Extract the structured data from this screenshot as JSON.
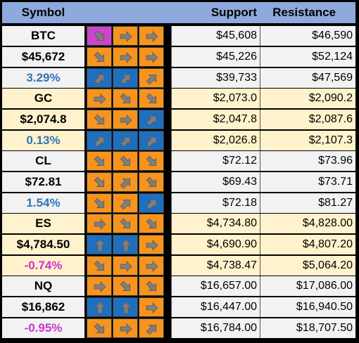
{
  "header": {
    "symbol": "Symbol",
    "support": "Support",
    "resistance": "Resistance",
    "bg": "#8EA9DB"
  },
  "colors": {
    "orange": "#F7941D",
    "blue": "#1F6FBF",
    "magenta": "#CC44CC",
    "light_band": "#F2F2F2",
    "cream_band": "#FFF2CC",
    "pos_text": "#2F75B5",
    "neg_text": "#CC33CC",
    "arrow_gray": "#7F7F7F"
  },
  "groups": [
    {
      "band": "light",
      "rows": [
        {
          "label": "BTC",
          "label_color": "#000000",
          "arrows": [
            [
              "magenta",
              "down-right"
            ],
            [
              "orange",
              "right"
            ],
            [
              "orange",
              "right"
            ]
          ],
          "support": "$45,608",
          "resistance": "$46,590"
        },
        {
          "label": "$45,672",
          "label_color": "#000000",
          "arrows": [
            [
              "orange",
              "down-right"
            ],
            [
              "orange",
              "right"
            ],
            [
              "orange",
              "right"
            ]
          ],
          "support": "$45,226",
          "resistance": "$52,124"
        },
        {
          "label": "3.29%",
          "label_color": "#2F75B5",
          "arrows": [
            [
              "blue",
              "up-right"
            ],
            [
              "blue",
              "up-right"
            ],
            [
              "orange",
              "up-right"
            ]
          ],
          "support": "$39,733",
          "resistance": "$47,569"
        }
      ]
    },
    {
      "band": "cream",
      "rows": [
        {
          "label": "GC",
          "label_color": "#000000",
          "arrows": [
            [
              "orange",
              "right"
            ],
            [
              "orange",
              "down-right"
            ],
            [
              "orange",
              "down-right"
            ]
          ],
          "support": "$2,073.0",
          "resistance": "$2,090.2"
        },
        {
          "label": "$2,074.8",
          "label_color": "#000000",
          "arrows": [
            [
              "orange",
              "down-right"
            ],
            [
              "orange",
              "right"
            ],
            [
              "blue",
              "up-right"
            ]
          ],
          "support": "$2,047.8",
          "resistance": "$2,087.6"
        },
        {
          "label": "0.13%",
          "label_color": "#2F75B5",
          "arrows": [
            [
              "blue",
              "up-right"
            ],
            [
              "blue",
              "up-right"
            ],
            [
              "blue",
              "up-right"
            ]
          ],
          "support": "$2,026.8",
          "resistance": "$2,107.3"
        }
      ]
    },
    {
      "band": "light",
      "rows": [
        {
          "label": "CL",
          "label_color": "#000000",
          "arrows": [
            [
              "orange",
              "down-right"
            ],
            [
              "orange",
              "down-right"
            ],
            [
              "orange",
              "down-right"
            ]
          ],
          "support": "$72.12",
          "resistance": "$73.96"
        },
        {
          "label": "$72.81",
          "label_color": "#000000",
          "arrows": [
            [
              "orange",
              "down-right"
            ],
            [
              "orange",
              "up-right"
            ],
            [
              "orange",
              "down-right"
            ]
          ],
          "support": "$69.43",
          "resistance": "$73.71"
        },
        {
          "label": "1.54%",
          "label_color": "#2F75B5",
          "arrows": [
            [
              "orange",
              "down-right"
            ],
            [
              "orange",
              "up-right"
            ],
            [
              "blue",
              "up-right"
            ]
          ],
          "support": "$72.18",
          "resistance": "$81.27"
        }
      ]
    },
    {
      "band": "cream",
      "rows": [
        {
          "label": "ES",
          "label_color": "#000000",
          "arrows": [
            [
              "orange",
              "right"
            ],
            [
              "orange",
              "down-right"
            ],
            [
              "orange",
              "down-right"
            ]
          ],
          "support": "$4,734.80",
          "resistance": "$4,828.00"
        },
        {
          "label": "$4,784.50",
          "label_color": "#000000",
          "arrows": [
            [
              "blue",
              "up"
            ],
            [
              "blue",
              "up"
            ],
            [
              "orange",
              "right"
            ]
          ],
          "support": "$4,690.90",
          "resistance": "$4,807.20"
        },
        {
          "label": "-0.74%",
          "label_color": "#CC33CC",
          "arrows": [
            [
              "orange",
              "down-right"
            ],
            [
              "orange",
              "right"
            ],
            [
              "orange",
              "right"
            ]
          ],
          "support": "$4,738.47",
          "resistance": "$5,064.20"
        }
      ]
    },
    {
      "band": "light",
      "rows": [
        {
          "label": "NQ",
          "label_color": "#000000",
          "arrows": [
            [
              "orange",
              "right"
            ],
            [
              "orange",
              "down-right"
            ],
            [
              "orange",
              "down-right"
            ]
          ],
          "support": "$16,657.00",
          "resistance": "$17,086.00"
        },
        {
          "label": "$16,862",
          "label_color": "#000000",
          "arrows": [
            [
              "blue",
              "up"
            ],
            [
              "blue",
              "up"
            ],
            [
              "orange",
              "right"
            ]
          ],
          "support": "$16,447.00",
          "resistance": "$16,940.50"
        },
        {
          "label": "-0.95%",
          "label_color": "#CC33CC",
          "arrows": [
            [
              "orange",
              "down-right"
            ],
            [
              "orange",
              "right"
            ],
            [
              "orange",
              "up-right"
            ]
          ],
          "support": "$16,784.00",
          "resistance": "$18,707.50"
        }
      ]
    }
  ]
}
